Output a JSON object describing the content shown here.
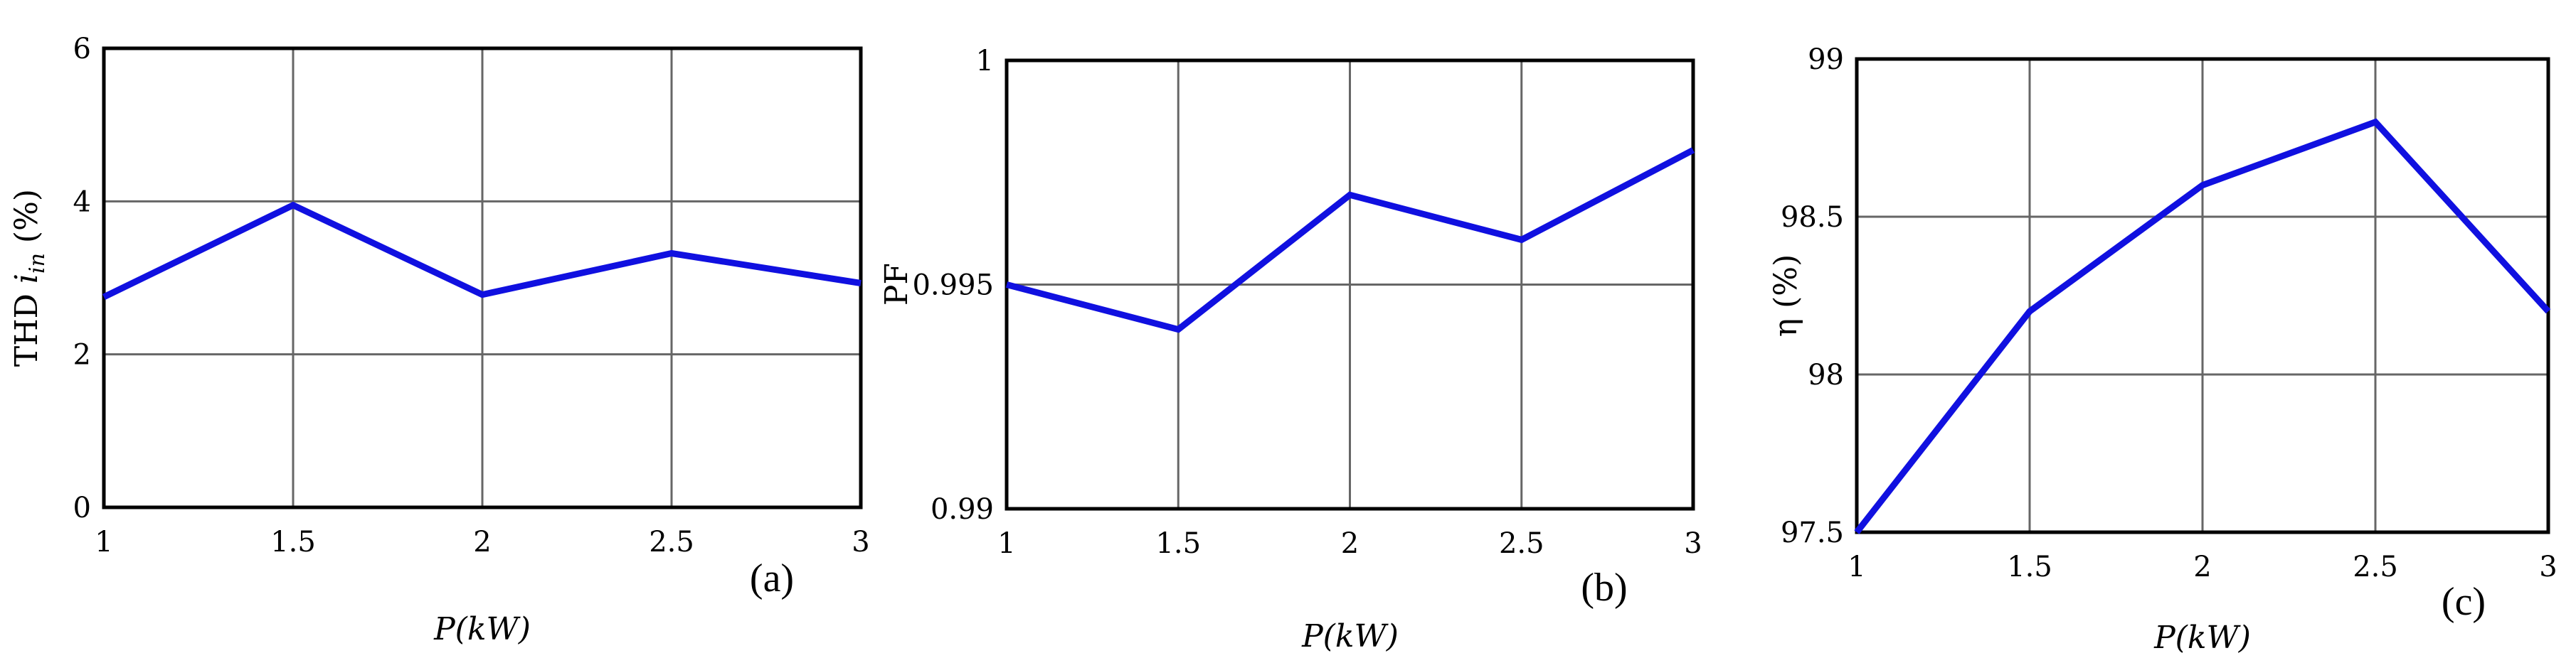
{
  "chart_data": [
    {
      "type": "line",
      "panel_label": "(a)",
      "xlabel": "P(kW)",
      "ylabel": "THD i_in (%)",
      "xlim": [
        1,
        3
      ],
      "ylim": [
        0,
        6
      ],
      "x_ticks": [
        "1",
        "1.5",
        "2",
        "2.5",
        "3"
      ],
      "y_ticks": [
        "0",
        "2",
        "4",
        "6"
      ],
      "grid": true,
      "series": [
        {
          "x": [
            1,
            1.5,
            2,
            2.5,
            3
          ],
          "y": [
            2.75,
            3.95,
            2.78,
            3.32,
            2.93
          ]
        }
      ]
    },
    {
      "type": "line",
      "panel_label": "(b)",
      "xlabel": "P(kW)",
      "ylabel": "PF",
      "xlim": [
        1,
        3
      ],
      "ylim": [
        0.99,
        1
      ],
      "x_ticks": [
        "1",
        "1.5",
        "2",
        "2.5",
        "3"
      ],
      "y_ticks": [
        "0.99",
        "0.995",
        "1"
      ],
      "grid": true,
      "series": [
        {
          "x": [
            1,
            1.5,
            2,
            2.5,
            3
          ],
          "y": [
            0.995,
            0.994,
            0.997,
            0.996,
            0.998
          ]
        }
      ]
    },
    {
      "type": "line",
      "panel_label": "(c)",
      "xlabel": "P(kW)",
      "ylabel": "η (%)",
      "xlim": [
        1,
        3
      ],
      "ylim": [
        97.5,
        99
      ],
      "x_ticks": [
        "1",
        "1.5",
        "2",
        "2.5",
        "3"
      ],
      "y_ticks": [
        "97.5",
        "98",
        "98.5",
        "99"
      ],
      "grid": true,
      "series": [
        {
          "x": [
            1,
            1.5,
            2,
            2.5,
            3
          ],
          "y": [
            97.5,
            98.2,
            98.6,
            98.8,
            98.2
          ]
        }
      ]
    }
  ],
  "colors": {
    "line": "#1010e0",
    "grid": "#666666",
    "axis": "#000000"
  }
}
